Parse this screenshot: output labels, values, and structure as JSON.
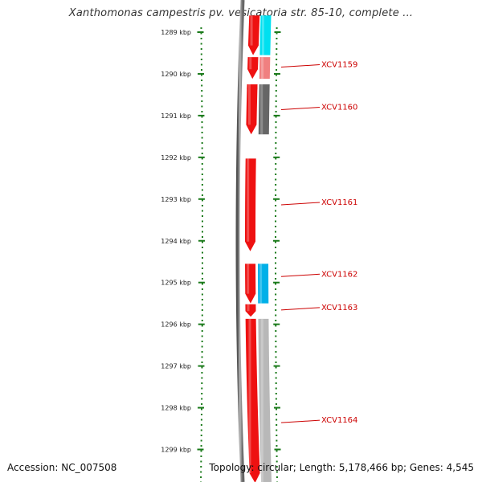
{
  "title": "Xanthomonas campestris pv. vesicatoria str. 85-10, complete ...",
  "footer": {
    "accession": "Accession: NC_007508",
    "summary": "Topology: circular; Length: 5,178,466 bp; Genes: 4,545"
  },
  "colors": {
    "forward_gene": "#ee1111",
    "backbone": "#777777",
    "tick": "#1a7a1a",
    "label": "#cc0000"
  },
  "ticks": [
    {
      "label": "1289 kbp",
      "kbp": 1289
    },
    {
      "label": "1290 kbp",
      "kbp": 1290
    },
    {
      "label": "1291 kbp",
      "kbp": 1291
    },
    {
      "label": "1292 kbp",
      "kbp": 1292
    },
    {
      "label": "1293 kbp",
      "kbp": 1293
    },
    {
      "label": "1294 kbp",
      "kbp": 1294
    },
    {
      "label": "1295 kbp",
      "kbp": 1295
    },
    {
      "label": "1296 kbp",
      "kbp": 1296
    },
    {
      "label": "1297 kbp",
      "kbp": 1297
    },
    {
      "label": "1298 kbp",
      "kbp": 1298
    },
    {
      "label": "1299 kbp",
      "kbp": 1299
    }
  ],
  "forward_genes": [
    {
      "start_kbp": 1288.6,
      "end_kbp": 1289.55
    },
    {
      "start_kbp": 1289.6,
      "end_kbp": 1290.12
    },
    {
      "start_kbp": 1290.25,
      "end_kbp": 1290.47
    },
    {
      "start_kbp": 1290.25,
      "end_kbp": 1291.45
    },
    {
      "start_kbp": 1292.03,
      "end_kbp": 1294.25
    },
    {
      "start_kbp": 1294.55,
      "end_kbp": 1295.5
    },
    {
      "start_kbp": 1295.52,
      "end_kbp": 1295.82
    },
    {
      "start_kbp": 1295.87,
      "end_kbp": 1299.8
    }
  ],
  "cds_features": [
    {
      "name": "XCV1159",
      "start_kbp": 1288.6,
      "end_kbp": 1289.55,
      "color": "#00e0f0"
    },
    {
      "name": "XCV1159",
      "start_kbp": 1289.6,
      "end_kbp": 1290.12,
      "color": "#f08080"
    },
    {
      "name": "XCV1160",
      "start_kbp": 1290.25,
      "end_kbp": 1291.45,
      "color": "#666666"
    },
    {
      "name": "XCV1162",
      "start_kbp": 1294.55,
      "end_kbp": 1295.5,
      "color": "#00b0e8"
    },
    {
      "name": "XCV1164",
      "start_kbp": 1295.87,
      "end_kbp": 1299.8,
      "color": "#b8b8b8"
    }
  ],
  "gene_labels": [
    {
      "name": "XCV1159",
      "kbp": 1289.78
    },
    {
      "name": "XCV1160",
      "kbp": 1290.8
    },
    {
      "name": "XCV1161",
      "kbp": 1293.08
    },
    {
      "name": "XCV1162",
      "kbp": 1294.8
    },
    {
      "name": "XCV1163",
      "kbp": 1295.6
    },
    {
      "name": "XCV1164",
      "kbp": 1298.3
    }
  ]
}
